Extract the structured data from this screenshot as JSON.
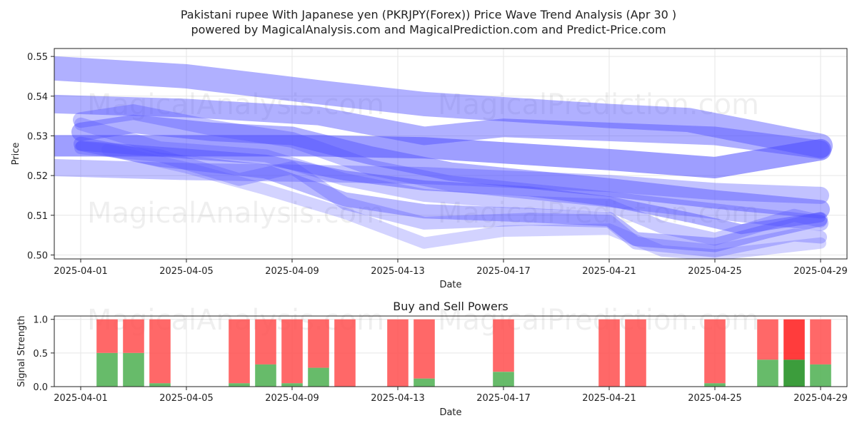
{
  "title_line1": "Pakistani rupee With Japanese yen (PKRJPY(Forex)) Price Wave Trend Analysis (Apr 30 )",
  "title_line2": "powered by MagicalAnalysis.com and MagicalPrediction.com and Predict-Price.com",
  "watermarks": [
    "MagicalAnalysis.com",
    "MagicalPrediction.com"
  ],
  "colors": {
    "wave": "#4f4fff",
    "buy": "#4caf50",
    "sell": "#ff4d4d",
    "buy_strong": "#1a8c1a",
    "sell_strong": "#ff1a1a",
    "grid": "#e6e6e6",
    "axis": "#222222"
  },
  "chart_data": [
    {
      "type": "line",
      "xlabel": "Date",
      "ylabel": "Price",
      "ylim": [
        0.499,
        0.552
      ],
      "xlim": [
        "2025-03-31",
        "2025-04-30"
      ],
      "x_ticks": [
        "2025-04-01",
        "2025-04-05",
        "2025-04-09",
        "2025-04-13",
        "2025-04-17",
        "2025-04-21",
        "2025-04-25",
        "2025-04-29"
      ],
      "y_ticks": [
        0.5,
        0.51,
        0.52,
        0.53,
        0.54,
        0.55
      ],
      "y_tick_labels": [
        "0.50",
        "0.51",
        "0.52",
        "0.53",
        "0.54",
        "0.55"
      ],
      "grid": true,
      "series": [
        {
          "opacity": 0.45,
          "width": 34,
          "points": [
            [
              "2025-03-31",
              0.547
            ],
            [
              "2025-04-05",
              0.545
            ],
            [
              "2025-04-10",
              0.541
            ],
            [
              "2025-04-14",
              0.538
            ],
            [
              "2025-04-21",
              0.535
            ],
            [
              "2025-04-24",
              0.534
            ],
            [
              "2025-04-29",
              0.5275
            ]
          ]
        },
        {
          "opacity": 0.45,
          "width": 26,
          "points": [
            [
              "2025-03-31",
              0.538
            ],
            [
              "2025-04-05",
              0.537
            ],
            [
              "2025-04-10",
              0.535
            ],
            [
              "2025-04-14",
              0.53
            ],
            [
              "2025-04-17",
              0.532
            ],
            [
              "2025-04-21",
              0.531
            ],
            [
              "2025-04-25",
              0.53
            ],
            [
              "2025-04-29",
              0.5265
            ]
          ]
        },
        {
          "opacity": 0.55,
          "width": 30,
          "points": [
            [
              "2025-03-31",
              0.5275
            ],
            [
              "2025-04-05",
              0.5275
            ],
            [
              "2025-04-10",
              0.5275
            ],
            [
              "2025-04-14",
              0.527
            ],
            [
              "2025-04-21",
              0.524
            ],
            [
              "2025-04-25",
              0.522
            ],
            [
              "2025-04-29",
              0.5265
            ]
          ]
        },
        {
          "opacity": 0.35,
          "width": 24,
          "points": [
            [
              "2025-03-31",
              0.522
            ],
            [
              "2025-04-05",
              0.521
            ],
            [
              "2025-04-10",
              0.5205
            ],
            [
              "2025-04-14",
              0.52
            ],
            [
              "2025-04-21",
              0.518
            ],
            [
              "2025-04-25",
              0.516
            ],
            [
              "2025-04-29",
              0.515
            ]
          ]
        },
        {
          "opacity": 0.45,
          "width": 26,
          "points": [
            [
              "2025-04-01",
              0.531
            ],
            [
              "2025-04-03",
              0.533
            ],
            [
              "2025-04-06",
              0.531
            ],
            [
              "2025-04-09",
              0.53
            ],
            [
              "2025-04-12",
              0.525
            ],
            [
              "2025-04-15",
              0.521
            ],
            [
              "2025-04-18",
              0.519
            ],
            [
              "2025-04-21",
              0.517
            ],
            [
              "2025-04-25",
              0.514
            ],
            [
              "2025-04-29",
              0.5115
            ]
          ]
        },
        {
          "opacity": 0.35,
          "width": 22,
          "points": [
            [
              "2025-04-01",
              0.534
            ],
            [
              "2025-04-03",
              0.536
            ],
            [
              "2025-04-06",
              0.532
            ],
            [
              "2025-04-09",
              0.529
            ],
            [
              "2025-04-12",
              0.522
            ],
            [
              "2025-04-15",
              0.518
            ],
            [
              "2025-04-18",
              0.516
            ],
            [
              "2025-04-21",
              0.514
            ],
            [
              "2025-04-25",
              0.511
            ],
            [
              "2025-04-29",
              0.508
            ]
          ]
        },
        {
          "opacity": 0.4,
          "width": 20,
          "points": [
            [
              "2025-04-01",
              0.528
            ],
            [
              "2025-04-04",
              0.524
            ],
            [
              "2025-04-08",
              0.521
            ],
            [
              "2025-04-11",
              0.514
            ],
            [
              "2025-04-14",
              0.511
            ],
            [
              "2025-04-18",
              0.51
            ],
            [
              "2025-04-21",
              0.509
            ],
            [
              "2025-04-22",
              0.504
            ],
            [
              "2025-04-25",
              0.5025
            ],
            [
              "2025-04-27",
              0.506
            ],
            [
              "2025-04-29",
              0.509
            ]
          ]
        },
        {
          "opacity": 0.3,
          "width": 18,
          "points": [
            [
              "2025-04-01",
              0.527
            ],
            [
              "2025-04-04",
              0.525
            ],
            [
              "2025-04-07",
              0.519
            ],
            [
              "2025-04-09",
              0.522
            ],
            [
              "2025-04-11",
              0.513
            ],
            [
              "2025-04-14",
              0.508
            ],
            [
              "2025-04-18",
              0.509
            ],
            [
              "2025-04-21",
              0.5085
            ],
            [
              "2025-04-22",
              0.503
            ],
            [
              "2025-04-25",
              0.501
            ],
            [
              "2025-04-28",
              0.505
            ],
            [
              "2025-04-29",
              0.5045
            ]
          ]
        },
        {
          "opacity": 0.25,
          "width": 16,
          "points": [
            [
              "2025-04-02",
              0.5265
            ],
            [
              "2025-04-05",
              0.522
            ],
            [
              "2025-04-08",
              0.5165
            ],
            [
              "2025-04-11",
              0.5105
            ],
            [
              "2025-04-14",
              0.503
            ],
            [
              "2025-04-17",
              0.506
            ],
            [
              "2025-04-21",
              0.5065
            ],
            [
              "2025-04-23",
              0.501
            ],
            [
              "2025-04-25",
              0.5
            ],
            [
              "2025-04-29",
              0.503
            ]
          ]
        },
        {
          "opacity": 0.3,
          "width": 18,
          "points": [
            [
              "2025-04-01",
              0.533
            ],
            [
              "2025-04-04",
              0.527
            ],
            [
              "2025-04-08",
              0.525
            ],
            [
              "2025-04-11",
              0.519
            ],
            [
              "2025-04-14",
              0.515
            ],
            [
              "2025-04-17",
              0.5135
            ],
            [
              "2025-04-21",
              0.5125
            ],
            [
              "2025-04-23",
              0.507
            ],
            [
              "2025-04-25",
              0.504
            ],
            [
              "2025-04-28",
              0.51
            ],
            [
              "2025-04-29",
              0.5085
            ]
          ]
        },
        {
          "opacity": 0.45,
          "width": 14,
          "points": [
            [
              "2025-04-01",
              0.5275
            ],
            [
              "2025-04-04",
              0.526
            ],
            [
              "2025-04-08",
              0.524
            ],
            [
              "2025-04-11",
              0.52
            ],
            [
              "2025-04-14",
              0.5175
            ],
            [
              "2025-04-18",
              0.516
            ],
            [
              "2025-04-21",
              0.5135
            ],
            [
              "2025-04-24",
              0.5095
            ],
            [
              "2025-04-26",
              0.5065
            ],
            [
              "2025-04-29",
              0.5095
            ]
          ]
        }
      ]
    },
    {
      "type": "bar",
      "title": "Buy and Sell Powers",
      "xlabel": "Date",
      "ylabel": "Signal Strength",
      "ylim": [
        0,
        1.05
      ],
      "y_ticks": [
        0.0,
        0.5,
        1.0
      ],
      "y_tick_labels": [
        "0.0",
        "0.5",
        "1.0"
      ],
      "x_ticks": [
        "2025-04-01",
        "2025-04-05",
        "2025-04-09",
        "2025-04-13",
        "2025-04-17",
        "2025-04-21",
        "2025-04-25",
        "2025-04-29"
      ],
      "x_range": [
        "2025-03-31",
        "2025-04-30"
      ],
      "grid": true,
      "bars": [
        {
          "date": "2025-04-02",
          "buy": 0.5,
          "total": 1.0
        },
        {
          "date": "2025-04-03",
          "buy": 0.5,
          "total": 1.0
        },
        {
          "date": "2025-04-04",
          "buy": 0.05,
          "total": 1.0
        },
        {
          "date": "2025-04-07",
          "buy": 0.05,
          "total": 1.0
        },
        {
          "date": "2025-04-08",
          "buy": 0.33,
          "total": 1.0
        },
        {
          "date": "2025-04-09",
          "buy": 0.05,
          "total": 1.0
        },
        {
          "date": "2025-04-10",
          "buy": 0.28,
          "total": 1.0
        },
        {
          "date": "2025-04-11",
          "buy": 0.0,
          "total": 1.0
        },
        {
          "date": "2025-04-13",
          "buy": 0.0,
          "total": 1.0
        },
        {
          "date": "2025-04-14",
          "buy": 0.12,
          "total": 1.0
        },
        {
          "date": "2025-04-17",
          "buy": 0.22,
          "total": 1.0
        },
        {
          "date": "2025-04-21",
          "buy": 0.0,
          "total": 1.0
        },
        {
          "date": "2025-04-22",
          "buy": 0.0,
          "total": 1.0
        },
        {
          "date": "2025-04-25",
          "buy": 0.05,
          "total": 1.0
        },
        {
          "date": "2025-04-27",
          "buy": 0.4,
          "total": 1.0
        },
        {
          "date": "2025-04-28",
          "buy": 0.4,
          "total": 1.0,
          "strong": true
        },
        {
          "date": "2025-04-29",
          "buy": 0.33,
          "total": 1.0
        }
      ]
    }
  ]
}
